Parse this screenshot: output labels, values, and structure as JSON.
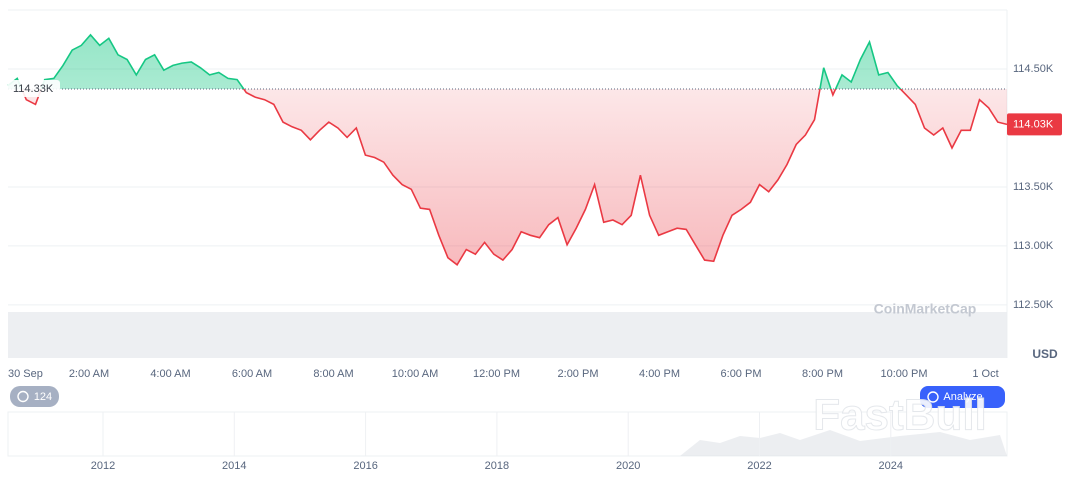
{
  "chart_data": {
    "type": "line",
    "values": [
      114360,
      114420,
      114240,
      114200,
      114410,
      114420,
      114530,
      114660,
      114700,
      114790,
      114700,
      114760,
      114620,
      114580,
      114450,
      114580,
      114620,
      114490,
      114530,
      114550,
      114560,
      114510,
      114450,
      114470,
      114420,
      114410,
      114300,
      114260,
      114240,
      114200,
      114050,
      114010,
      113980,
      113900,
      113980,
      114050,
      114000,
      113920,
      114000,
      113770,
      113750,
      113710,
      113600,
      113520,
      113480,
      113320,
      113310,
      113090,
      112900,
      112840,
      112970,
      112930,
      113030,
      112930,
      112880,
      112970,
      113120,
      113090,
      113070,
      113180,
      113240,
      113010,
      113150,
      113310,
      113520,
      113200,
      113220,
      113180,
      113260,
      113600,
      113260,
      113090,
      113120,
      113150,
      113140,
      113010,
      112880,
      112870,
      113090,
      113260,
      113310,
      113370,
      113520,
      113460,
      113560,
      113690,
      113860,
      113940,
      114070,
      114510,
      114280,
      114450,
      114390,
      114580,
      114730,
      114450,
      114470,
      114360,
      114280,
      114200,
      114000,
      113940,
      114000,
      113830,
      113980,
      113980,
      114240,
      114170,
      114050,
      114030
    ],
    "color_up": "#16c784",
    "color_down": "#ea3943",
    "baseline": {
      "value": 114330,
      "label": "114.33K"
    },
    "last_price": {
      "value": 114030,
      "label": "114.03K"
    },
    "ylim": [
      112050,
      115000
    ],
    "yticks": [
      {
        "value": 112500,
        "label": "112.50K"
      },
      {
        "value": 113000,
        "label": "113.00K"
      },
      {
        "value": 113500,
        "label": "113.50K"
      },
      {
        "value": 114500,
        "label": "114.50K"
      }
    ],
    "y_unit": "USD",
    "time_labels": [
      "30 Sep",
      "2:00 AM",
      "4:00 AM",
      "6:00 AM",
      "8:00 AM",
      "10:00 AM",
      "12:00 PM",
      "2:00 PM",
      "4:00 PM",
      "6:00 PM",
      "8:00 PM",
      "10:00 PM",
      "1 Oct"
    ],
    "watermark": "CoinMarketCap",
    "badge": "124",
    "button": "Analyze",
    "navigator_years": [
      2012,
      2014,
      2016,
      2018,
      2020,
      2022,
      2024
    ],
    "overlay_watermark": "FastBull"
  }
}
